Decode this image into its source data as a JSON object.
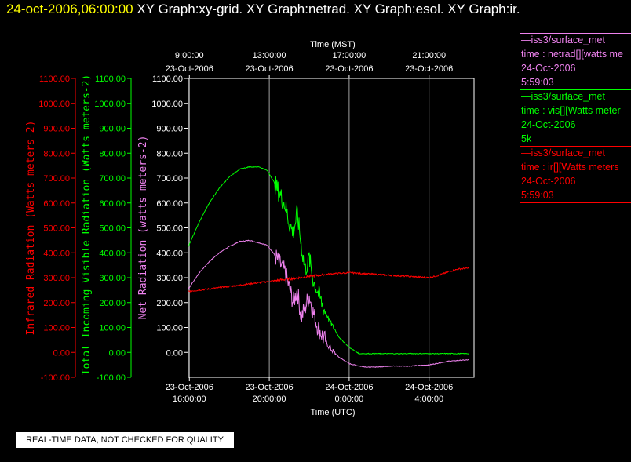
{
  "title": {
    "timestamp": "24-oct-2006,06:00:00",
    "graphs": "XY Graph:xy-grid.  XY Graph:netrad.  XY Graph:esol.  XY Graph:ir."
  },
  "legend": [
    {
      "station": "—iss3/surface_met",
      "field": "time : netrad[][watts me",
      "date": "24-Oct-2006",
      "extra": "5:59:03",
      "color": "#ee82ee"
    },
    {
      "station": "—iss3/surface_met",
      "field": "time : vis[][Watts meter",
      "date": "24-Oct-2006",
      "extra": "5k",
      "color": "#00ff00"
    },
    {
      "station": "—iss3/surface_met",
      "field": "time : ir[][Watts meters",
      "date": "24-Oct-2006",
      "extra": "5:59:03",
      "color": "#ff0000"
    }
  ],
  "note": "REAL-TIME DATA, NOT CHECKED FOR QUALITY",
  "colors": {
    "background": "#000000",
    "ir": "#ff0000",
    "vis": "#00ff00",
    "netrad": "#ee82ee",
    "grid": "#ffffff",
    "timestamp": "#ffff00"
  },
  "chart_data": {
    "type": "line",
    "x_axis_bottom": {
      "label": "Time (UTC)",
      "ticks": [
        {
          "hour": 16,
          "date": "23-Oct-2006",
          "time": "16:00:00"
        },
        {
          "hour": 20,
          "date": "23-Oct-2006",
          "time": "20:00:00"
        },
        {
          "hour": 24,
          "date": "24-Oct-2006",
          "time": "0:00:00"
        },
        {
          "hour": 28,
          "date": "24-Oct-2006",
          "time": "4:00:00"
        }
      ]
    },
    "x_axis_top": {
      "label": "Time (MST)",
      "ticks": [
        {
          "hour": 16,
          "date": "23-Oct-2006",
          "time": "9:00:00"
        },
        {
          "hour": 20,
          "date": "23-Oct-2006",
          "time": "13:00:00"
        },
        {
          "hour": 24,
          "date": "23-Oct-2006",
          "time": "17:00:00"
        },
        {
          "hour": 28,
          "date": "23-Oct-2006",
          "time": "21:00:00"
        }
      ]
    },
    "xlim": [
      15.95,
      30.25
    ],
    "ylim": [
      -100,
      1100
    ],
    "y_ticks": [
      "1100.00",
      "1000.00",
      "900.00",
      "800.00",
      "700.00",
      "600.00",
      "500.00",
      "400.00",
      "300.00",
      "200.00",
      "100.00",
      "0.00",
      "-100.00"
    ],
    "y_ticks_right": [
      "1100.00",
      "1000.00",
      "900.00",
      "800.00",
      "700.00",
      "600.00",
      "500.00",
      "400.00",
      "300.00",
      "200.00",
      "100.00",
      "0.00"
    ],
    "y_labels": {
      "ir": "Infrared Radiation (Watts meters-2)",
      "vis": "Total Incoming Visible Radiation (Watts meters-2)",
      "netrad": "Net Radiation (watts meters-2)"
    },
    "series": [
      {
        "key": "vis",
        "hours": [
          15.95,
          16.5,
          17.0,
          17.5,
          18.0,
          18.5,
          19.0,
          19.5,
          19.9,
          20.2,
          20.5,
          20.8,
          21.0,
          21.2,
          21.4,
          21.6,
          21.8,
          22.0,
          22.2,
          22.4,
          22.7,
          23.0,
          23.5,
          24.0,
          24.5,
          25.0,
          25.5,
          26.0,
          27.0,
          28.0,
          29.0,
          30.0
        ],
        "values": [
          425,
          525,
          600,
          660,
          705,
          735,
          745,
          745,
          730,
          690,
          640,
          590,
          520,
          480,
          560,
          430,
          330,
          380,
          290,
          250,
          180,
          130,
          60,
          20,
          -5,
          -5,
          -5,
          -5,
          -5,
          -5,
          -5,
          -5
        ]
      },
      {
        "key": "netrad",
        "hours": [
          15.95,
          16.5,
          17.0,
          17.5,
          18.0,
          18.5,
          19.0,
          19.5,
          19.9,
          20.2,
          20.5,
          20.8,
          21.0,
          21.2,
          21.4,
          21.6,
          21.8,
          22.0,
          22.2,
          22.4,
          22.7,
          23.0,
          23.5,
          24.0,
          24.5,
          25.0,
          25.5,
          26.0,
          27.0,
          28.0,
          29.0,
          30.0
        ],
        "values": [
          255,
          320,
          365,
          400,
          425,
          445,
          450,
          440,
          430,
          400,
          360,
          320,
          260,
          200,
          250,
          140,
          180,
          230,
          160,
          110,
          60,
          20,
          -20,
          -45,
          -55,
          -60,
          -58,
          -55,
          -55,
          -50,
          -35,
          -30
        ]
      },
      {
        "key": "ir",
        "hours": [
          15.95,
          17.0,
          18.0,
          19.0,
          20.0,
          21.0,
          22.0,
          23.0,
          24.0,
          25.0,
          26.0,
          27.0,
          28.0,
          28.5,
          29.0,
          29.5,
          30.0
        ],
        "values": [
          245,
          255,
          265,
          275,
          285,
          295,
          305,
          315,
          320,
          315,
          310,
          305,
          300,
          310,
          325,
          335,
          338
        ]
      }
    ]
  }
}
